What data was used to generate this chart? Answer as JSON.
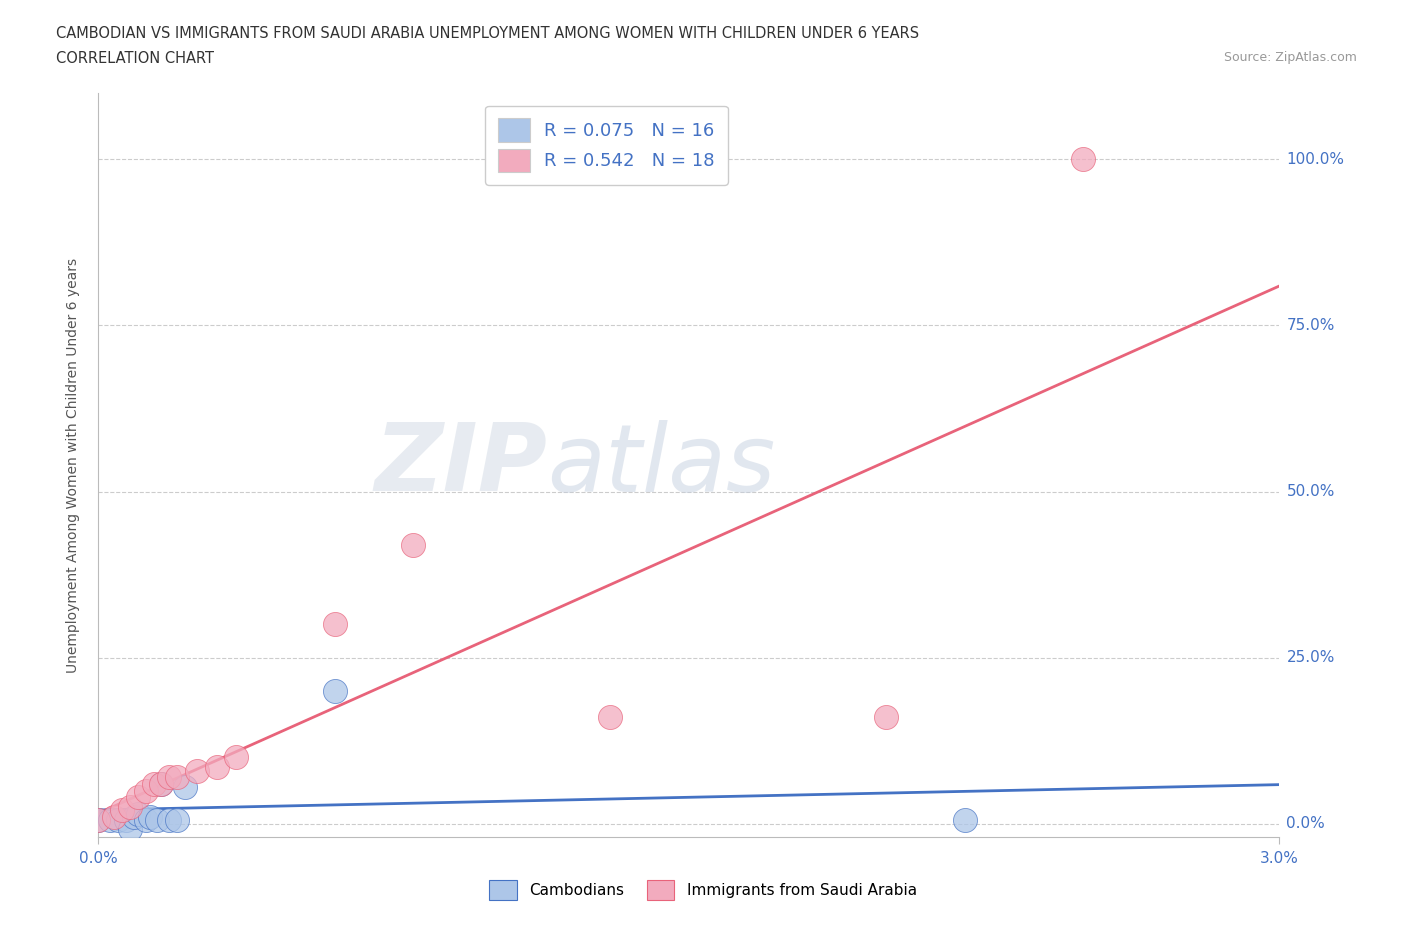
{
  "title_line1": "CAMBODIAN VS IMMIGRANTS FROM SAUDI ARABIA UNEMPLOYMENT AMONG WOMEN WITH CHILDREN UNDER 6 YEARS",
  "title_line2": "CORRELATION CHART",
  "source": "Source: ZipAtlas.com",
  "ylabel": "Unemployment Among Women with Children Under 6 years",
  "xlim": [
    0.0,
    0.03
  ],
  "ylim": [
    -0.02,
    1.1
  ],
  "ytick_labels": [
    "0.0%",
    "25.0%",
    "50.0%",
    "75.0%",
    "100.0%"
  ],
  "ytick_values": [
    0.0,
    0.25,
    0.5,
    0.75,
    1.0
  ],
  "xtick_labels": [
    "0.0%",
    "3.0%"
  ],
  "xtick_values": [
    0.0,
    0.03
  ],
  "cambodian_color": "#adc6e8",
  "saudi_color": "#f2abbe",
  "cambodian_line_color": "#4472c4",
  "saudi_line_color": "#e8637a",
  "background_color": "#ffffff",
  "watermark_zip": "ZIP",
  "watermark_atlas": "atlas",
  "cambodian_x": [
    0.0,
    0.0003,
    0.0005,
    0.0007,
    0.0008,
    0.0009,
    0.001,
    0.0012,
    0.0013,
    0.0015,
    0.0016,
    0.0018,
    0.002,
    0.0022,
    0.006,
    0.022
  ],
  "cambodian_y": [
    0.005,
    0.005,
    0.005,
    0.005,
    -0.008,
    0.01,
    0.015,
    0.005,
    0.01,
    0.005,
    0.06,
    0.005,
    0.005,
    0.055,
    0.2,
    0.005
  ],
  "saudi_x": [
    0.0,
    0.0004,
    0.0006,
    0.0008,
    0.001,
    0.0012,
    0.0014,
    0.0016,
    0.0018,
    0.002,
    0.0025,
    0.003,
    0.0035,
    0.006,
    0.008,
    0.013,
    0.02,
    0.025
  ],
  "saudi_y": [
    0.005,
    0.01,
    0.02,
    0.025,
    0.04,
    0.05,
    0.06,
    0.06,
    0.07,
    0.07,
    0.08,
    0.085,
    0.1,
    0.3,
    0.42,
    0.16,
    0.16,
    1.0
  ]
}
